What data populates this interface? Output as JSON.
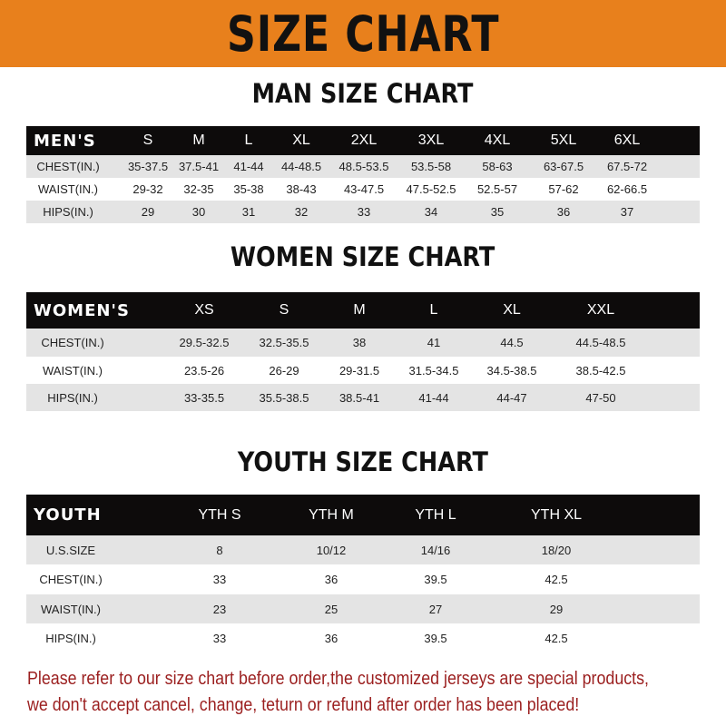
{
  "banner_title": "SIZE CHART",
  "colors": {
    "banner": "#e8801c",
    "header_row": "#0d0b0b",
    "alt_row": "#e4e4e4",
    "note": "#9b1f1f"
  },
  "tables": [
    {
      "title": "MAN SIZE CHART",
      "header": [
        "MEN'S",
        "S",
        "M",
        "L",
        "XL",
        "2XL",
        "3XL",
        "4XL",
        "5XL",
        "6XL"
      ],
      "rows": [
        [
          "CHEST(IN.)",
          "35-37.5",
          "37.5-41",
          "41-44",
          "44-48.5",
          "48.5-53.5",
          "53.5-58",
          "58-63",
          "63-67.5",
          "67.5-72"
        ],
        [
          "WAIST(IN.)",
          "29-32",
          "32-35",
          "35-38",
          "38-43",
          "43-47.5",
          "47.5-52.5",
          "52.5-57",
          "57-62",
          "62-66.5"
        ],
        [
          "HIPS(IN.)",
          "29",
          "30",
          "31",
          "32",
          "33",
          "34",
          "35",
          "36",
          "37"
        ]
      ]
    },
    {
      "title": "WOMEN SIZE CHART",
      "header": [
        "WOMEN'S",
        "XS",
        "S",
        "M",
        "L",
        "XL",
        "XXL"
      ],
      "rows": [
        [
          "CHEST(IN.)",
          "29.5-32.5",
          "32.5-35.5",
          "38",
          "41",
          "44.5",
          "44.5-48.5"
        ],
        [
          "WAIST(IN.)",
          "23.5-26",
          "26-29",
          "29-31.5",
          "31.5-34.5",
          "34.5-38.5",
          "38.5-42.5"
        ],
        [
          "HIPS(IN.)",
          "33-35.5",
          "35.5-38.5",
          "38.5-41",
          "41-44",
          "44-47",
          "47-50"
        ]
      ]
    },
    {
      "title": "YOUTH SIZE CHART",
      "header": [
        "YOUTH",
        "YTH S",
        "YTH M",
        "YTH L",
        "YTH XL"
      ],
      "rows": [
        [
          "U.S.SIZE",
          "8",
          "10/12",
          "14/16",
          "18/20"
        ],
        [
          "CHEST(IN.)",
          "33",
          "36",
          "39.5",
          "42.5"
        ],
        [
          "WAIST(IN.)",
          "23",
          "25",
          "27",
          "29"
        ],
        [
          "HIPS(IN.)",
          "33",
          "36",
          "39.5",
          "42.5"
        ]
      ]
    }
  ],
  "note_lines": [
    "Please refer to our size chart before order,the customized jerseys are special products,",
    "we don't accept cancel, change, teturn or refund after order has been placed!"
  ]
}
